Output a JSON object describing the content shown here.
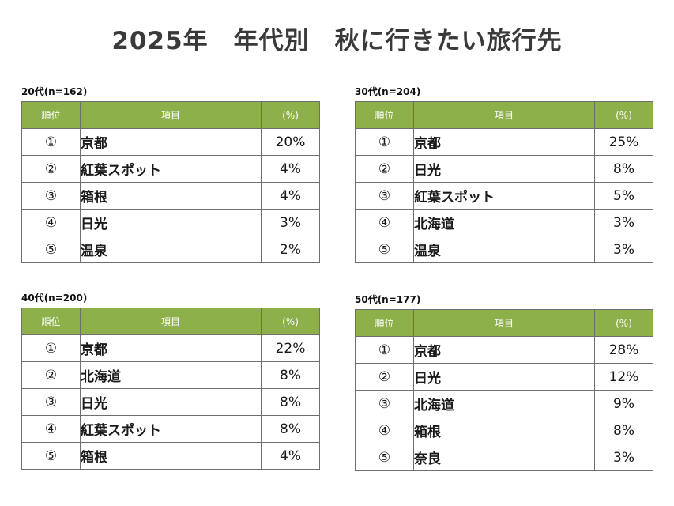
{
  "title": "2025年　年代別　秋に行きたい旅行先",
  "colors": {
    "header_bg": "#8db04a",
    "header_text": "#ffffff",
    "border": "#6f6f6f",
    "title_text": "#3a3a3a"
  },
  "columns": {
    "rank": "順位",
    "item": "項目",
    "pct": "(%)"
  },
  "groups": [
    {
      "label": "20代(n=162)",
      "rows": [
        {
          "rank": "①",
          "item": "京都",
          "pct": "20%"
        },
        {
          "rank": "②",
          "item": "紅葉スポット",
          "pct": "4%"
        },
        {
          "rank": "③",
          "item": "箱根",
          "pct": "4%"
        },
        {
          "rank": "④",
          "item": "日光",
          "pct": "3%"
        },
        {
          "rank": "⑤",
          "item": "温泉",
          "pct": "2%"
        }
      ]
    },
    {
      "label": "30代(n=204)",
      "rows": [
        {
          "rank": "①",
          "item": "京都",
          "pct": "25%"
        },
        {
          "rank": "②",
          "item": "日光",
          "pct": "8%"
        },
        {
          "rank": "③",
          "item": "紅葉スポット",
          "pct": "5%"
        },
        {
          "rank": "④",
          "item": "北海道",
          "pct": "3%"
        },
        {
          "rank": "⑤",
          "item": "温泉",
          "pct": "3%"
        }
      ]
    },
    {
      "label": "40代(n=200)",
      "rows": [
        {
          "rank": "①",
          "item": "京都",
          "pct": "22%"
        },
        {
          "rank": "②",
          "item": "北海道",
          "pct": "8%"
        },
        {
          "rank": "③",
          "item": "日光",
          "pct": "8%"
        },
        {
          "rank": "④",
          "item": "紅葉スポット",
          "pct": "8%"
        },
        {
          "rank": "⑤",
          "item": "箱根",
          "pct": "4%"
        }
      ]
    },
    {
      "label": "50代(n=177)",
      "rows": [
        {
          "rank": "①",
          "item": "京都",
          "pct": "28%"
        },
        {
          "rank": "②",
          "item": "日光",
          "pct": "12%"
        },
        {
          "rank": "③",
          "item": "北海道",
          "pct": "9%"
        },
        {
          "rank": "④",
          "item": "箱根",
          "pct": "8%"
        },
        {
          "rank": "⑤",
          "item": "奈良",
          "pct": "3%"
        }
      ]
    }
  ]
}
